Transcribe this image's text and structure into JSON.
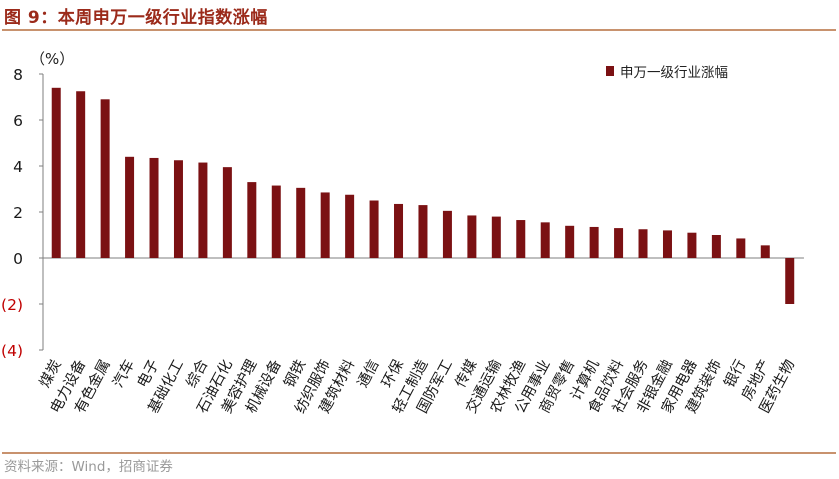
{
  "figure": {
    "title": "图 9：本周申万一级行业指数涨幅",
    "source": "资料来源：Wind，招商证券"
  },
  "chart_data": {
    "type": "bar",
    "title": "图 9：本周申万一级行业指数涨幅",
    "unit_label": "（%）",
    "legend": "申万一级行业涨幅",
    "legend_position": "top-right",
    "ylim": [
      -4,
      8
    ],
    "yticks": [
      8,
      6,
      4,
      2,
      0,
      -2,
      -4
    ],
    "ytick_labels": [
      "8",
      "6",
      "4",
      "2",
      "0",
      "(2)",
      "(4)"
    ],
    "bar_color": "#7b1113",
    "negative_tick_color": "#c00000",
    "categories": [
      "煤炭",
      "电力设备",
      "有色金属",
      "汽车",
      "电子",
      "基础化工",
      "综合",
      "石油石化",
      "美容护理",
      "机械设备",
      "钢铁",
      "纺织服饰",
      "建筑材料",
      "通信",
      "环保",
      "轻工制造",
      "国防军工",
      "传媒",
      "交通运输",
      "农林牧渔",
      "公用事业",
      "商贸零售",
      "计算机",
      "食品饮料",
      "社会服务",
      "非银金融",
      "家用电器",
      "建筑装饰",
      "银行",
      "房地产",
      "医药生物"
    ],
    "values": [
      7.4,
      7.25,
      6.9,
      4.4,
      4.35,
      4.25,
      4.15,
      3.95,
      3.3,
      3.15,
      3.05,
      2.85,
      2.75,
      2.5,
      2.35,
      2.3,
      2.05,
      1.85,
      1.8,
      1.65,
      1.55,
      1.4,
      1.35,
      1.3,
      1.25,
      1.2,
      1.1,
      1.0,
      0.85,
      0.55,
      -2.0
    ],
    "grid": false
  }
}
